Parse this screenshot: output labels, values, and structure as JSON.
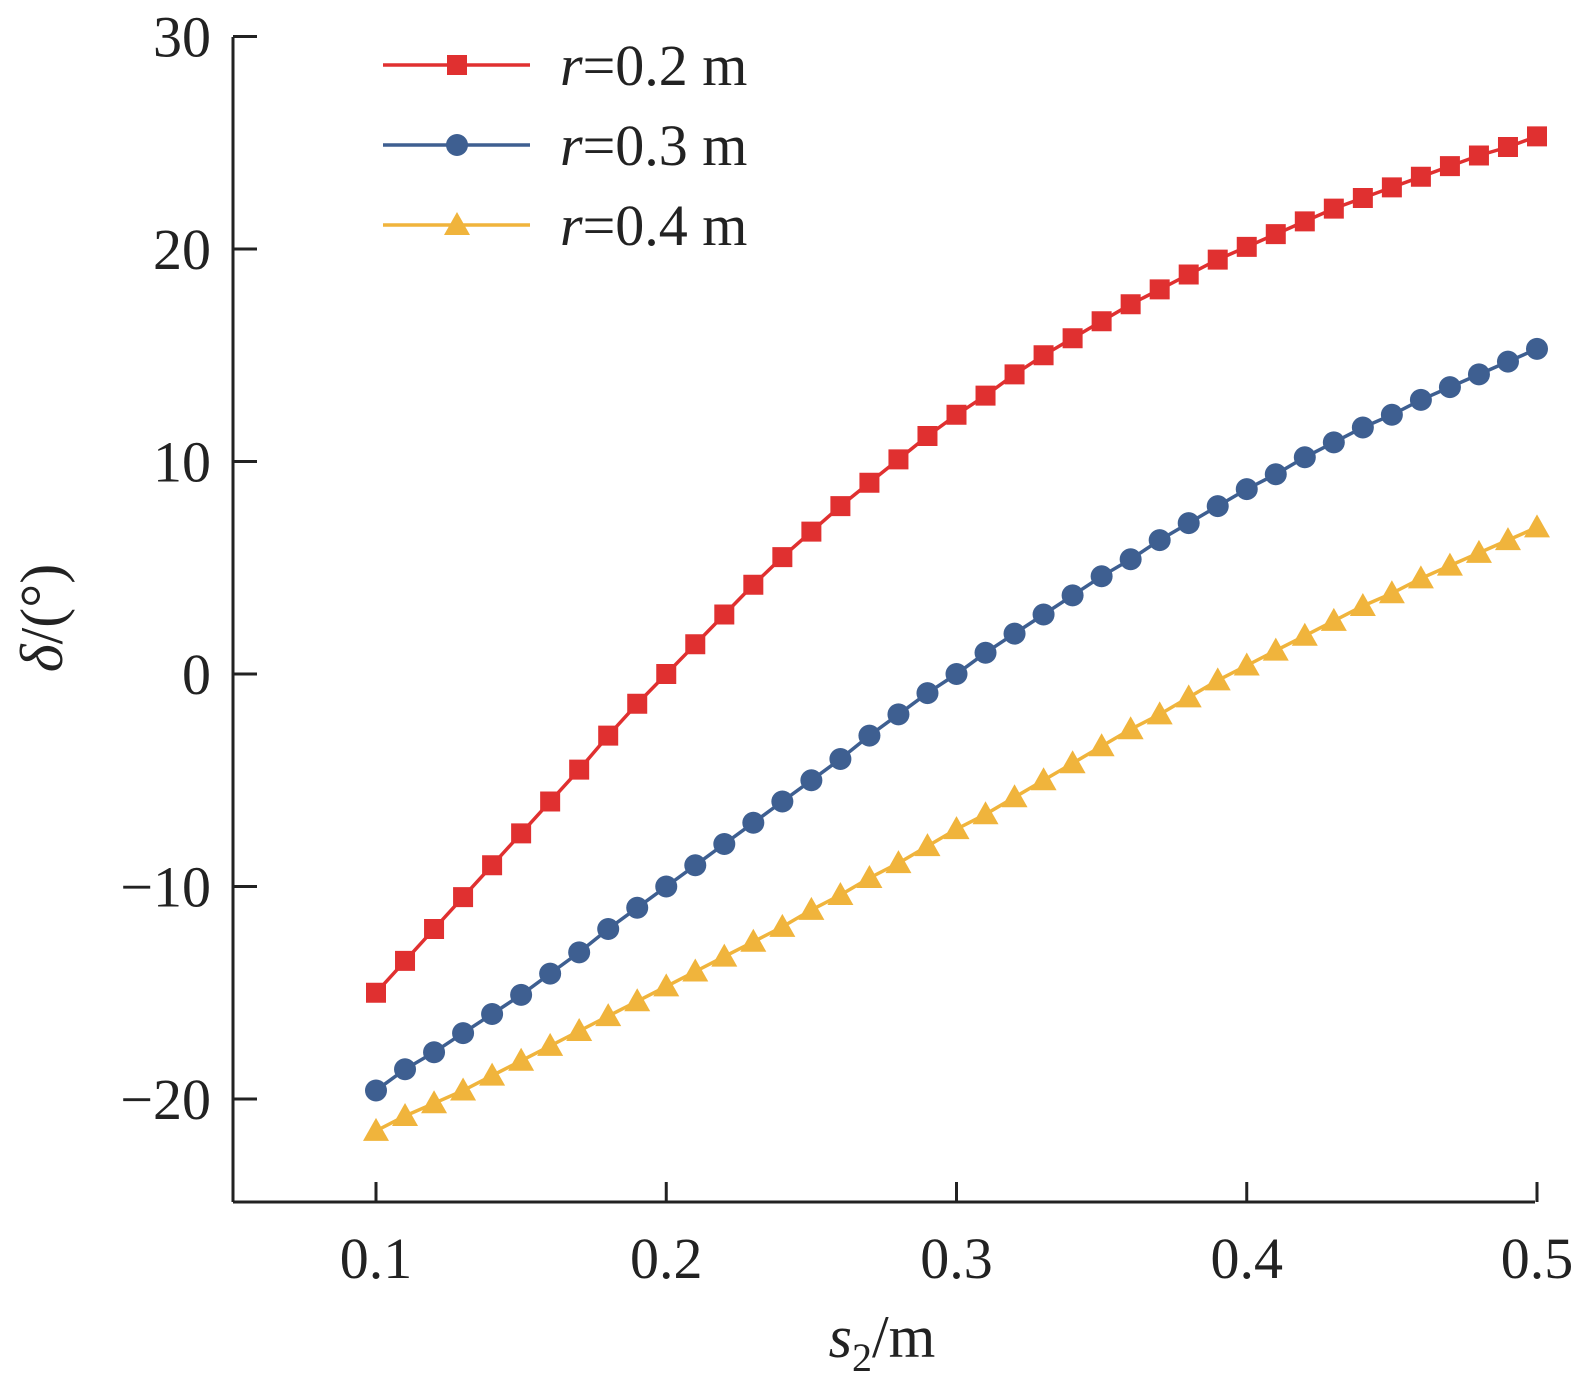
{
  "chart_data": {
    "type": "line",
    "xlabel": {
      "var": "s",
      "sub": "2",
      "unit": "/m"
    },
    "ylabel": {
      "var": "δ",
      "unit": "/(°)"
    },
    "xlim": [
      0.05,
      0.5
    ],
    "ylim": [
      -25,
      30
    ],
    "xticks": [
      0.1,
      0.2,
      0.3,
      0.4,
      0.5
    ],
    "xtick_labels": [
      "0.1",
      "0.2",
      "0.3",
      "0.4",
      "0.5"
    ],
    "yticks": [
      -20,
      -10,
      0,
      10,
      20,
      30
    ],
    "ytick_labels": [
      "−20",
      "−10",
      "0",
      "10",
      "20",
      "30"
    ],
    "grid": false,
    "legend_position": "top-left",
    "x": [
      0.1,
      0.11,
      0.12,
      0.13,
      0.14,
      0.15,
      0.16,
      0.17,
      0.18,
      0.19,
      0.2,
      0.21,
      0.22,
      0.23,
      0.24,
      0.25,
      0.26,
      0.27,
      0.28,
      0.29,
      0.3,
      0.31,
      0.32,
      0.33,
      0.34,
      0.35,
      0.36,
      0.37,
      0.38,
      0.39,
      0.4,
      0.41,
      0.42,
      0.43,
      0.44,
      0.45,
      0.46,
      0.47,
      0.48,
      0.49,
      0.5
    ],
    "series": [
      {
        "name": "r=0.2 m",
        "name_var": "r",
        "name_rest": "=0.2 m",
        "color": "#e03030",
        "marker": "square",
        "values": [
          -15.0,
          -13.5,
          -12.0,
          -10.5,
          -9.0,
          -7.5,
          -6.0,
          -4.5,
          -2.9,
          -1.4,
          0.0,
          1.4,
          2.8,
          4.2,
          5.5,
          6.7,
          7.9,
          9.0,
          10.1,
          11.2,
          12.2,
          13.1,
          14.1,
          15.0,
          15.8,
          16.6,
          17.4,
          18.1,
          18.8,
          19.5,
          20.1,
          20.7,
          21.3,
          21.9,
          22.4,
          22.9,
          23.4,
          23.9,
          24.4,
          24.8,
          25.3
        ]
      },
      {
        "name": "r=0.3 m",
        "name_var": "r",
        "name_rest": "=0.3 m",
        "color": "#3e5f91",
        "marker": "circle",
        "values": [
          -19.6,
          -18.6,
          -17.8,
          -16.9,
          -16.0,
          -15.1,
          -14.1,
          -13.1,
          -12.0,
          -11.0,
          -10.0,
          -9.0,
          -8.0,
          -7.0,
          -6.0,
          -5.0,
          -4.0,
          -2.9,
          -1.9,
          -0.9,
          0.0,
          1.0,
          1.9,
          2.8,
          3.7,
          4.6,
          5.4,
          6.3,
          7.1,
          7.9,
          8.7,
          9.4,
          10.2,
          10.9,
          11.6,
          12.2,
          12.9,
          13.5,
          14.1,
          14.7,
          15.3
        ]
      },
      {
        "name": "r=0.4 m",
        "name_var": "r",
        "name_rest": "=0.4 m",
        "color": "#f0b43c",
        "marker": "triangle",
        "values": [
          -21.5,
          -20.8,
          -20.2,
          -19.6,
          -18.9,
          -18.2,
          -17.5,
          -16.8,
          -16.1,
          -15.4,
          -14.7,
          -14.0,
          -13.3,
          -12.6,
          -11.9,
          -11.1,
          -10.4,
          -9.6,
          -8.9,
          -8.1,
          -7.3,
          -6.6,
          -5.8,
          -5.0,
          -4.2,
          -3.4,
          -2.6,
          -1.9,
          -1.1,
          -0.3,
          0.4,
          1.1,
          1.8,
          2.5,
          3.2,
          3.8,
          4.5,
          5.1,
          5.7,
          6.3,
          6.9
        ]
      }
    ]
  }
}
